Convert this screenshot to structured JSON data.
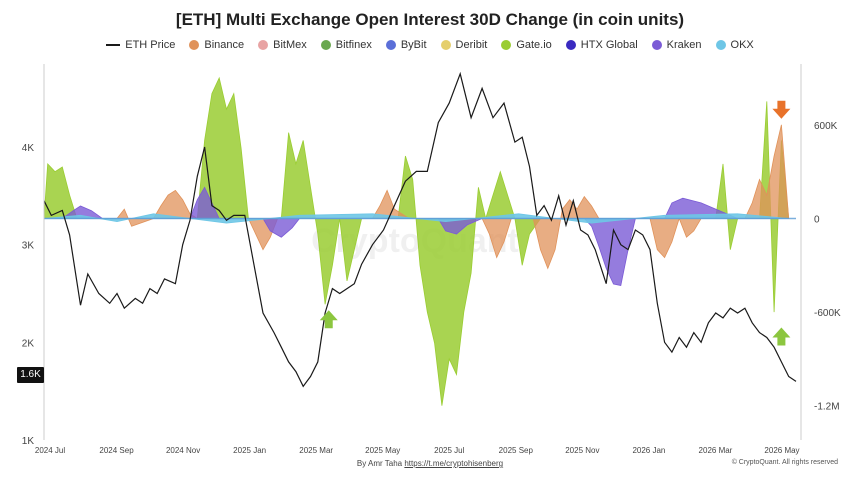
{
  "title": "[ETH] Multi Exchange Open Interest 30D Change (in coin units)",
  "watermark": "CryptoQuant",
  "footer": {
    "author": "By Amr Taha",
    "link": "https://t.me/cryptohisenberg",
    "copyright": "© CryptoQuant. All rights reserved"
  },
  "current_price_label": "1.6K",
  "colors": {
    "eth_price": "#1a1a1a",
    "binance": "#e0925a",
    "bitmex": "#e8a3a3",
    "bitfinex": "#6aa84f",
    "bybit": "#5b6fd8",
    "deribit": "#e5cf6c",
    "gateio": "#9acd32",
    "htx": "#3a2ac0",
    "kraken": "#7b5bd6",
    "okx": "#6ec6e6",
    "arrow_orange": "#e8722a",
    "arrow_green": "#8cc63f"
  },
  "chart_data": {
    "type": "area",
    "title": "[ETH] Multi Exchange Open Interest 30D Change (in coin units)",
    "x_ticks": [
      "2024 Jul",
      "2024 Sep",
      "2024 Nov",
      "2025 Jan",
      "2025 Mar",
      "2025 May",
      "2025 Jul",
      "2025 Sep",
      "2025 Nov",
      "2026 Jan",
      "2026 Mar",
      "2026 May"
    ],
    "left_axis": {
      "ticks": [
        "1K",
        "2K",
        "3K",
        "4K"
      ],
      "values": [
        1000,
        2000,
        3000,
        4000
      ],
      "range": [
        1000,
        4850
      ]
    },
    "right_axis": {
      "ticks": [
        "-1.2M",
        "-600K",
        "0",
        "600K"
      ],
      "values": [
        -1200000,
        -600000,
        0,
        600000
      ],
      "range": [
        -1420000,
        990000
      ]
    },
    "legend": [
      "ETH Price",
      "Binance",
      "BitMex",
      "Bitfinex",
      "ByBit",
      "Deribit",
      "Gate.io",
      "HTX Global",
      "Kraken",
      "OKX"
    ],
    "eth_price": [
      {
        "x": 0.0,
        "y": 3450
      },
      {
        "x": 0.02,
        "y": 3300
      },
      {
        "x": 0.05,
        "y": 3350
      },
      {
        "x": 0.07,
        "y": 3100
      },
      {
        "x": 0.1,
        "y": 2380
      },
      {
        "x": 0.12,
        "y": 2700
      },
      {
        "x": 0.15,
        "y": 2500
      },
      {
        "x": 0.18,
        "y": 2400
      },
      {
        "x": 0.2,
        "y": 2500
      },
      {
        "x": 0.22,
        "y": 2350
      },
      {
        "x": 0.25,
        "y": 2450
      },
      {
        "x": 0.27,
        "y": 2400
      },
      {
        "x": 0.29,
        "y": 2550
      },
      {
        "x": 0.31,
        "y": 2500
      },
      {
        "x": 0.33,
        "y": 2650
      },
      {
        "x": 0.36,
        "y": 2600
      },
      {
        "x": 0.38,
        "y": 3000
      },
      {
        "x": 0.4,
        "y": 3250
      },
      {
        "x": 0.42,
        "y": 3700
      },
      {
        "x": 0.44,
        "y": 4000
      },
      {
        "x": 0.46,
        "y": 3400
      },
      {
        "x": 0.48,
        "y": 3350
      },
      {
        "x": 0.5,
        "y": 3250
      },
      {
        "x": 0.52,
        "y": 3300
      },
      {
        "x": 0.55,
        "y": 3300
      },
      {
        "x": 0.58,
        "y": 2700
      },
      {
        "x": 0.6,
        "y": 2300
      },
      {
        "x": 0.63,
        "y": 2100
      },
      {
        "x": 0.65,
        "y": 1950
      },
      {
        "x": 0.67,
        "y": 1800
      },
      {
        "x": 0.69,
        "y": 1700
      },
      {
        "x": 0.71,
        "y": 1550
      },
      {
        "x": 0.73,
        "y": 1650
      },
      {
        "x": 0.75,
        "y": 1800
      },
      {
        "x": 0.77,
        "y": 2300
      },
      {
        "x": 0.79,
        "y": 2550
      },
      {
        "x": 0.81,
        "y": 2500
      },
      {
        "x": 0.83,
        "y": 2550
      },
      {
        "x": 0.85,
        "y": 2600
      },
      {
        "x": 0.87,
        "y": 2800
      },
      {
        "x": 0.9,
        "y": 3000
      },
      {
        "x": 0.93,
        "y": 3150
      },
      {
        "x": 0.96,
        "y": 3400
      },
      {
        "x": 0.99,
        "y": 3650
      },
      {
        "x": 1.02,
        "y": 3750
      },
      {
        "x": 1.05,
        "y": 3750
      },
      {
        "x": 1.08,
        "y": 4250
      },
      {
        "x": 1.11,
        "y": 4450
      },
      {
        "x": 1.14,
        "y": 4750
      },
      {
        "x": 1.17,
        "y": 4300
      },
      {
        "x": 1.2,
        "y": 4600
      },
      {
        "x": 1.23,
        "y": 4300
      },
      {
        "x": 1.26,
        "y": 4450
      },
      {
        "x": 1.29,
        "y": 4050
      },
      {
        "x": 1.31,
        "y": 4100
      },
      {
        "x": 1.33,
        "y": 3800
      },
      {
        "x": 1.35,
        "y": 3300
      },
      {
        "x": 1.37,
        "y": 3400
      },
      {
        "x": 1.39,
        "y": 3250
      },
      {
        "x": 1.41,
        "y": 3500
      },
      {
        "x": 1.43,
        "y": 3200
      },
      {
        "x": 1.45,
        "y": 3450
      },
      {
        "x": 1.47,
        "y": 3150
      },
      {
        "x": 1.49,
        "y": 3100
      },
      {
        "x": 1.51,
        "y": 2950
      },
      {
        "x": 1.54,
        "y": 2600
      },
      {
        "x": 1.56,
        "y": 3150
      },
      {
        "x": 1.58,
        "y": 3000
      },
      {
        "x": 1.6,
        "y": 2950
      },
      {
        "x": 1.62,
        "y": 3150
      },
      {
        "x": 1.64,
        "y": 3100
      },
      {
        "x": 1.66,
        "y": 2950
      },
      {
        "x": 1.68,
        "y": 2400
      },
      {
        "x": 1.7,
        "y": 2000
      },
      {
        "x": 1.72,
        "y": 1900
      },
      {
        "x": 1.74,
        "y": 2050
      },
      {
        "x": 1.76,
        "y": 1950
      },
      {
        "x": 1.78,
        "y": 2100
      },
      {
        "x": 1.8,
        "y": 2000
      },
      {
        "x": 1.82,
        "y": 2200
      },
      {
        "x": 1.84,
        "y": 2300
      },
      {
        "x": 1.86,
        "y": 2250
      },
      {
        "x": 1.88,
        "y": 2350
      },
      {
        "x": 1.9,
        "y": 2300
      },
      {
        "x": 1.92,
        "y": 2350
      },
      {
        "x": 1.94,
        "y": 2200
      },
      {
        "x": 1.96,
        "y": 2100
      },
      {
        "x": 1.98,
        "y": 2050
      },
      {
        "x": 2.0,
        "y": 1950
      },
      {
        "x": 2.02,
        "y": 1800
      },
      {
        "x": 2.04,
        "y": 1650
      },
      {
        "x": 2.06,
        "y": 1600
      }
    ],
    "oi_series": [
      {
        "name": "Gate.io",
        "points": [
          {
            "x": 0.0,
            "y": 0
          },
          {
            "x": 0.01,
            "y": 350000
          },
          {
            "x": 0.03,
            "y": 300000
          },
          {
            "x": 0.05,
            "y": 330000
          },
          {
            "x": 0.07,
            "y": 150000
          },
          {
            "x": 0.09,
            "y": 0
          },
          {
            "x": 0.42,
            "y": 0
          },
          {
            "x": 0.44,
            "y": 500000
          },
          {
            "x": 0.46,
            "y": 800000
          },
          {
            "x": 0.48,
            "y": 900000
          },
          {
            "x": 0.5,
            "y": 700000
          },
          {
            "x": 0.52,
            "y": 800000
          },
          {
            "x": 0.54,
            "y": 450000
          },
          {
            "x": 0.56,
            "y": 0
          },
          {
            "x": 0.65,
            "y": 0
          },
          {
            "x": 0.67,
            "y": 550000
          },
          {
            "x": 0.69,
            "y": 350000
          },
          {
            "x": 0.71,
            "y": 500000
          },
          {
            "x": 0.73,
            "y": 200000
          },
          {
            "x": 0.75,
            "y": -100000
          },
          {
            "x": 0.77,
            "y": -550000
          },
          {
            "x": 0.79,
            "y": -300000
          },
          {
            "x": 0.81,
            "y": 0
          },
          {
            "x": 0.83,
            "y": -400000
          },
          {
            "x": 0.85,
            "y": -200000
          },
          {
            "x": 0.87,
            "y": 0
          },
          {
            "x": 0.97,
            "y": 0
          },
          {
            "x": 0.99,
            "y": 400000
          },
          {
            "x": 1.01,
            "y": 250000
          },
          {
            "x": 1.03,
            "y": -300000
          },
          {
            "x": 1.05,
            "y": -600000
          },
          {
            "x": 1.07,
            "y": -800000
          },
          {
            "x": 1.09,
            "y": -1200000
          },
          {
            "x": 1.11,
            "y": -900000
          },
          {
            "x": 1.13,
            "y": -1000000
          },
          {
            "x": 1.15,
            "y": -600000
          },
          {
            "x": 1.17,
            "y": -350000
          },
          {
            "x": 1.19,
            "y": 200000
          },
          {
            "x": 1.21,
            "y": 0
          },
          {
            "x": 1.25,
            "y": 300000
          },
          {
            "x": 1.27,
            "y": 150000
          },
          {
            "x": 1.29,
            "y": 0
          },
          {
            "x": 1.31,
            "y": -300000
          },
          {
            "x": 1.33,
            "y": -100000
          },
          {
            "x": 1.36,
            "y": 0
          },
          {
            "x": 1.84,
            "y": 0
          },
          {
            "x": 1.86,
            "y": 350000
          },
          {
            "x": 1.88,
            "y": -200000
          },
          {
            "x": 1.9,
            "y": 0
          },
          {
            "x": 1.96,
            "y": 0
          },
          {
            "x": 1.98,
            "y": 750000
          },
          {
            "x": 2.0,
            "y": -600000
          },
          {
            "x": 2.02,
            "y": 500000
          },
          {
            "x": 2.04,
            "y": 0
          }
        ]
      },
      {
        "name": "Binance",
        "points": [
          {
            "x": 0.0,
            "y": 0
          },
          {
            "x": 0.2,
            "y": 0
          },
          {
            "x": 0.22,
            "y": 60000
          },
          {
            "x": 0.24,
            "y": -50000
          },
          {
            "x": 0.3,
            "y": 0
          },
          {
            "x": 0.32,
            "y": 80000
          },
          {
            "x": 0.34,
            "y": 150000
          },
          {
            "x": 0.36,
            "y": 180000
          },
          {
            "x": 0.38,
            "y": 120000
          },
          {
            "x": 0.4,
            "y": 30000
          },
          {
            "x": 0.42,
            "y": 0
          },
          {
            "x": 0.56,
            "y": 0
          },
          {
            "x": 0.58,
            "y": -100000
          },
          {
            "x": 0.6,
            "y": -200000
          },
          {
            "x": 0.62,
            "y": -120000
          },
          {
            "x": 0.64,
            "y": 0
          },
          {
            "x": 0.9,
            "y": 0
          },
          {
            "x": 0.92,
            "y": 80000
          },
          {
            "x": 0.94,
            "y": 180000
          },
          {
            "x": 0.96,
            "y": 60000
          },
          {
            "x": 1.0,
            "y": 0
          },
          {
            "x": 1.2,
            "y": 0
          },
          {
            "x": 1.22,
            "y": -100000
          },
          {
            "x": 1.24,
            "y": -250000
          },
          {
            "x": 1.26,
            "y": -150000
          },
          {
            "x": 1.28,
            "y": 0
          },
          {
            "x": 1.34,
            "y": 0
          },
          {
            "x": 1.36,
            "y": -200000
          },
          {
            "x": 1.38,
            "y": -320000
          },
          {
            "x": 1.4,
            "y": -200000
          },
          {
            "x": 1.42,
            "y": 60000
          },
          {
            "x": 1.44,
            "y": 120000
          },
          {
            "x": 1.46,
            "y": 60000
          },
          {
            "x": 1.48,
            "y": 140000
          },
          {
            "x": 1.5,
            "y": 80000
          },
          {
            "x": 1.52,
            "y": 0
          },
          {
            "x": 1.66,
            "y": 0
          },
          {
            "x": 1.68,
            "y": -200000
          },
          {
            "x": 1.7,
            "y": -250000
          },
          {
            "x": 1.72,
            "y": -150000
          },
          {
            "x": 1.74,
            "y": 0
          },
          {
            "x": 1.76,
            "y": -120000
          },
          {
            "x": 1.78,
            "y": -80000
          },
          {
            "x": 1.8,
            "y": 0
          },
          {
            "x": 1.92,
            "y": 0
          },
          {
            "x": 1.94,
            "y": 100000
          },
          {
            "x": 1.96,
            "y": 250000
          },
          {
            "x": 1.98,
            "y": 150000
          },
          {
            "x": 2.0,
            "y": 400000
          },
          {
            "x": 2.02,
            "y": 600000
          },
          {
            "x": 2.04,
            "y": 0
          }
        ]
      },
      {
        "name": "Kraken",
        "points": [
          {
            "x": 0.0,
            "y": 0
          },
          {
            "x": 0.05,
            "y": 0
          },
          {
            "x": 0.08,
            "y": 50000
          },
          {
            "x": 0.1,
            "y": 80000
          },
          {
            "x": 0.13,
            "y": 50000
          },
          {
            "x": 0.16,
            "y": 0
          },
          {
            "x": 0.4,
            "y": 0
          },
          {
            "x": 0.42,
            "y": 120000
          },
          {
            "x": 0.44,
            "y": 200000
          },
          {
            "x": 0.46,
            "y": 100000
          },
          {
            "x": 0.48,
            "y": 0
          },
          {
            "x": 0.6,
            "y": 0
          },
          {
            "x": 0.62,
            "y": -80000
          },
          {
            "x": 0.65,
            "y": -120000
          },
          {
            "x": 0.68,
            "y": -60000
          },
          {
            "x": 0.7,
            "y": 0
          },
          {
            "x": 1.08,
            "y": 0
          },
          {
            "x": 1.1,
            "y": -80000
          },
          {
            "x": 1.13,
            "y": -100000
          },
          {
            "x": 1.16,
            "y": -40000
          },
          {
            "x": 1.2,
            "y": 0
          },
          {
            "x": 1.48,
            "y": 0
          },
          {
            "x": 1.5,
            "y": -50000
          },
          {
            "x": 1.52,
            "y": -180000
          },
          {
            "x": 1.54,
            "y": -320000
          },
          {
            "x": 1.56,
            "y": -420000
          },
          {
            "x": 1.58,
            "y": -430000
          },
          {
            "x": 1.6,
            "y": -200000
          },
          {
            "x": 1.62,
            "y": 0
          },
          {
            "x": 1.7,
            "y": 0
          },
          {
            "x": 1.72,
            "y": 100000
          },
          {
            "x": 1.75,
            "y": 130000
          },
          {
            "x": 1.8,
            "y": 100000
          },
          {
            "x": 1.84,
            "y": 60000
          },
          {
            "x": 1.88,
            "y": 20000
          },
          {
            "x": 1.9,
            "y": 0
          },
          {
            "x": 2.04,
            "y": 0
          }
        ]
      },
      {
        "name": "OKX",
        "points": [
          {
            "x": 0.0,
            "y": 0
          },
          {
            "x": 0.1,
            "y": 20000
          },
          {
            "x": 0.2,
            "y": -20000
          },
          {
            "x": 0.3,
            "y": 30000
          },
          {
            "x": 0.5,
            "y": -30000
          },
          {
            "x": 0.7,
            "y": 20000
          },
          {
            "x": 0.9,
            "y": 30000
          },
          {
            "x": 1.1,
            "y": -20000
          },
          {
            "x": 1.3,
            "y": 30000
          },
          {
            "x": 1.5,
            "y": -30000
          },
          {
            "x": 1.7,
            "y": 20000
          },
          {
            "x": 1.9,
            "y": 30000
          },
          {
            "x": 2.04,
            "y": 0
          }
        ]
      }
    ],
    "annotations": [
      {
        "type": "arrow-down",
        "color": "orange",
        "x": 2.02,
        "y": 690000
      },
      {
        "type": "arrow-up",
        "color": "green",
        "x": 0.78,
        "y": -640000
      },
      {
        "type": "arrow-up",
        "color": "green",
        "x": 2.02,
        "y": -750000
      }
    ]
  }
}
